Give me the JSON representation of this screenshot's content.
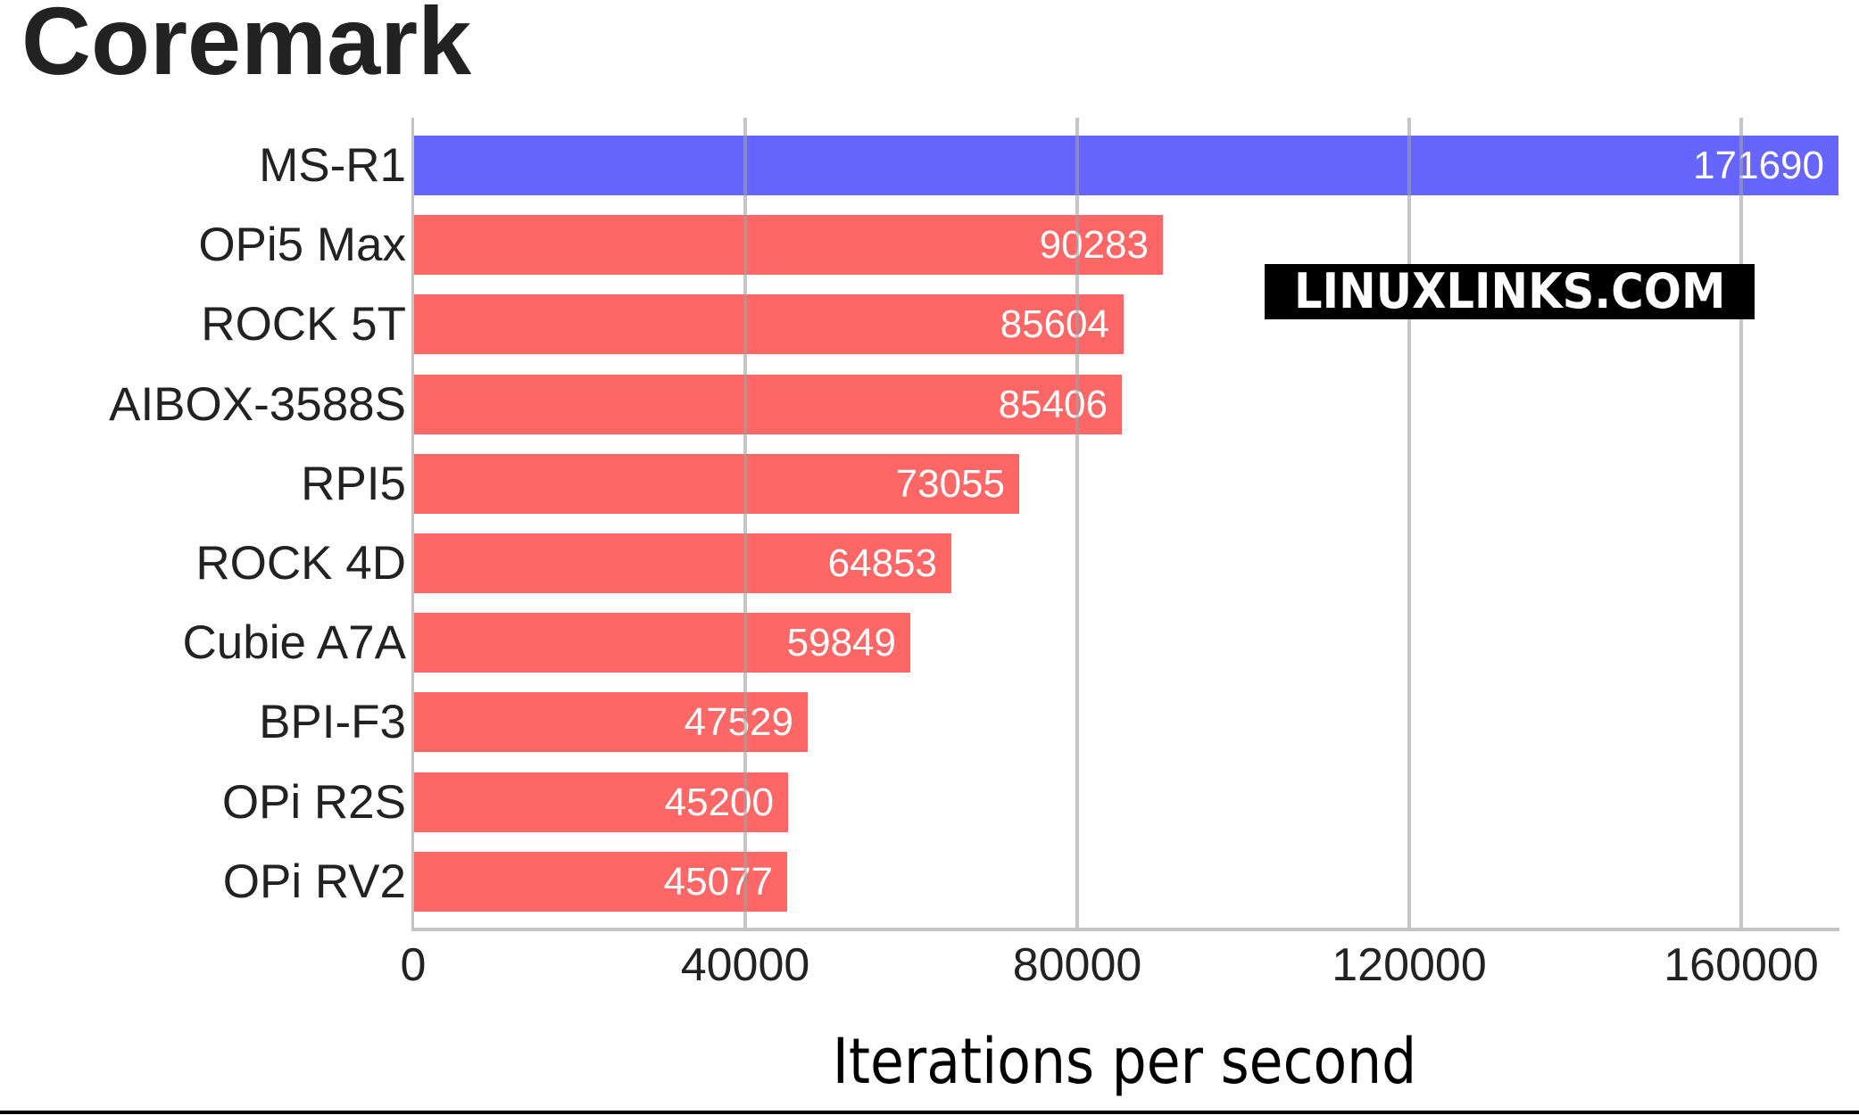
{
  "chart_data": {
    "type": "bar",
    "orientation": "horizontal",
    "title": "Coremark",
    "xlabel": "Iterations per second",
    "ylabel": "",
    "xlim": [
      0,
      171690
    ],
    "grid": true,
    "legend": null,
    "categories": [
      "MS-R1",
      "OPi5 Max",
      "ROCK 5T",
      "AIBOX-3588S",
      "RPI5",
      "ROCK 4D",
      "Cubie A7A",
      "BPI-F3",
      "OPi R2S",
      "OPi RV2"
    ],
    "values": [
      171690,
      90283,
      85604,
      85406,
      73055,
      64853,
      59849,
      47529,
      45200,
      45077
    ],
    "bar_colors": [
      "#6666ff",
      "#ff6666",
      "#ff6666",
      "#ff6666",
      "#ff6666",
      "#ff6666",
      "#ff6666",
      "#ff6666",
      "#ff6666",
      "#ff6666"
    ],
    "x_ticks": [
      0,
      40000,
      80000,
      120000,
      160000
    ],
    "x_tick_labels": [
      "0",
      "40000",
      "80000",
      "120000",
      "160000"
    ],
    "annotations": [
      "LINUXLINKS.COM"
    ]
  },
  "header": {
    "title": "Coremark"
  },
  "axis": {
    "x_title": "Iterations per second",
    "ticks": [
      "0",
      "40000",
      "80000",
      "120000",
      "160000"
    ]
  },
  "bars": [
    {
      "label": "MS-R1",
      "value": "171690",
      "color": "#6666ff"
    },
    {
      "label": "OPi5 Max",
      "value": "90283",
      "color": "#ff6666"
    },
    {
      "label": "ROCK 5T",
      "value": "85604",
      "color": "#ff6666"
    },
    {
      "label": "AIBOX-3588S",
      "value": "85406",
      "color": "#ff6666"
    },
    {
      "label": "RPI5",
      "value": "73055",
      "color": "#ff6666"
    },
    {
      "label": "ROCK 4D",
      "value": "64853",
      "color": "#ff6666"
    },
    {
      "label": "Cubie A7A",
      "value": "59849",
      "color": "#ff6666"
    },
    {
      "label": "BPI-F3",
      "value": "47529",
      "color": "#ff6666"
    },
    {
      "label": "OPi R2S",
      "value": "45200",
      "color": "#ff6666"
    },
    {
      "label": "OPi RV2",
      "value": "45077",
      "color": "#ff6666"
    }
  ],
  "watermark": {
    "text": "LINUXLINKS.COM"
  },
  "colors": {
    "highlight": "#6666ff",
    "bar": "#ff6666",
    "grid": "#c4c4c4",
    "text": "#222222"
  }
}
